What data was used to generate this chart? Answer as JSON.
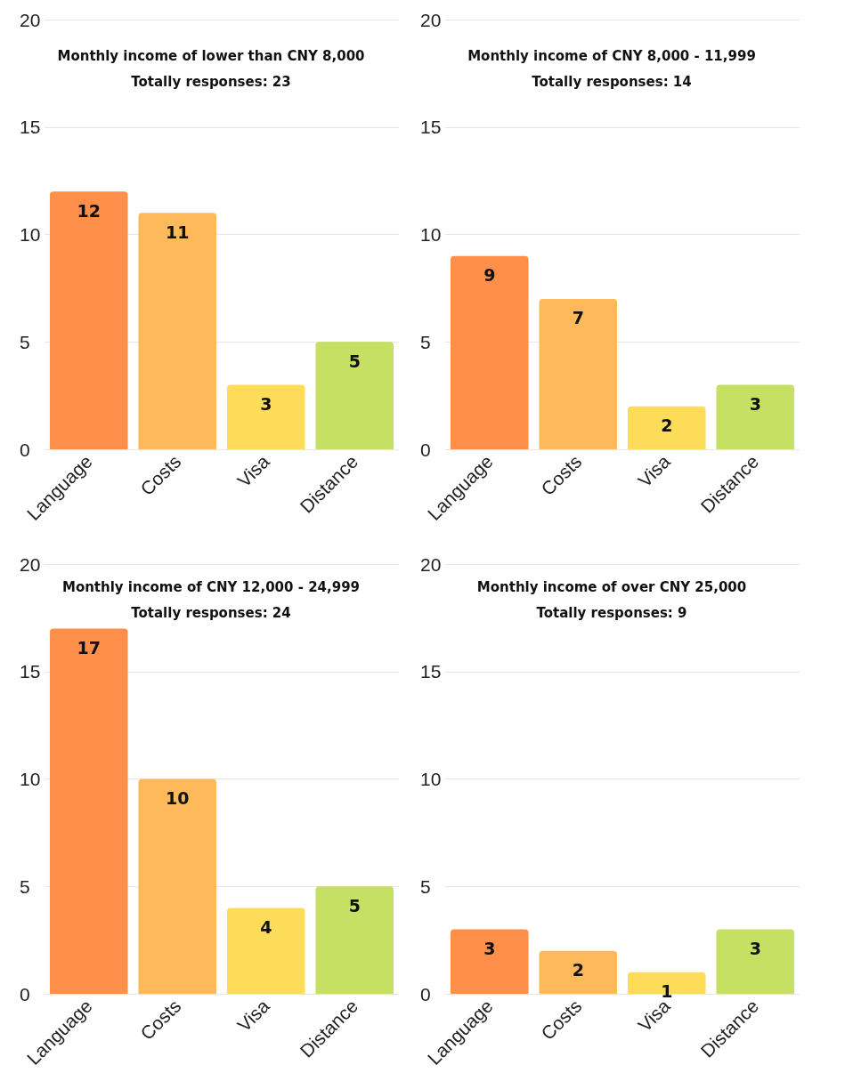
{
  "chart_data": [
    {
      "type": "bar",
      "title": "Monthly income of lower than CNY 8,000",
      "subtitle": "Totally responses: 23",
      "categories": [
        "Language",
        "Costs",
        "Visa",
        "Distance"
      ],
      "values": [
        12,
        11,
        3,
        5
      ],
      "colors": [
        "#fd8f4a",
        "#fdb95a",
        "#fddc5a",
        "#c5e063"
      ],
      "ylim": [
        0,
        20
      ],
      "yticks": [
        0,
        5,
        10,
        15,
        20
      ],
      "grid": "y",
      "data_labels": true
    },
    {
      "type": "bar",
      "title": "Monthly income of CNY 8,000 - 11,999",
      "subtitle": "Totally responses: 14",
      "categories": [
        "Language",
        "Costs",
        "Visa",
        "Distance"
      ],
      "values": [
        9,
        7,
        2,
        3
      ],
      "colors": [
        "#fd8f4a",
        "#fdb95a",
        "#fddc5a",
        "#c5e063"
      ],
      "ylim": [
        0,
        20
      ],
      "yticks": [
        0,
        5,
        10,
        15,
        20
      ],
      "grid": "y",
      "data_labels": true
    },
    {
      "type": "bar",
      "title": "Monthly income of CNY 12,000 - 24,999",
      "subtitle": "Totally responses: 24",
      "categories": [
        "Language",
        "Costs",
        "Visa",
        "Distance"
      ],
      "values": [
        17,
        10,
        4,
        5
      ],
      "colors": [
        "#fd8f4a",
        "#fdb95a",
        "#fddc5a",
        "#c5e063"
      ],
      "ylim": [
        0,
        20
      ],
      "yticks": [
        0,
        5,
        10,
        15,
        20
      ],
      "grid": "y",
      "data_labels": true
    },
    {
      "type": "bar",
      "title": "Monthly income of over CNY 25,000",
      "subtitle": "Totally responses: 9",
      "categories": [
        "Language",
        "Costs",
        "Visa",
        "Distance"
      ],
      "values": [
        3,
        2,
        1,
        3
      ],
      "colors": [
        "#fd8f4a",
        "#fdb95a",
        "#fddc5a",
        "#c5e063"
      ],
      "ylim": [
        0,
        20
      ],
      "yticks": [
        0,
        5,
        10,
        15,
        20
      ],
      "grid": "y",
      "data_labels": true
    }
  ]
}
